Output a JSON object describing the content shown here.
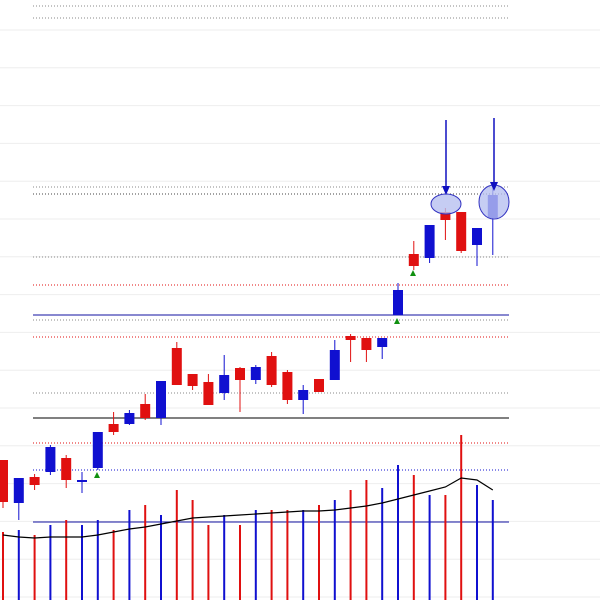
{
  "chart_data": {
    "type": "candlestick",
    "up_color": "#1010d0",
    "down_color": "#e01010",
    "ylim": [
      0,
      600
    ],
    "open": [
      140,
      97,
      123,
      128,
      142,
      118,
      132,
      176,
      176,
      196,
      182,
      252,
      226,
      218,
      207,
      232,
      220,
      244,
      228,
      200,
      221,
      220,
      264,
      262,
      253,
      285,
      346,
      342,
      388,
      388,
      355,
      382
    ],
    "high": [
      140,
      122,
      126,
      155,
      145,
      128,
      168,
      188,
      190,
      206,
      219,
      258,
      226,
      226,
      245,
      233,
      235,
      248,
      230,
      215,
      221,
      260,
      266,
      262,
      262,
      317,
      359,
      375,
      392,
      388,
      372,
      412
    ],
    "low": [
      92,
      80,
      110,
      125,
      112,
      107,
      130,
      165,
      175,
      180,
      175,
      215,
      210,
      195,
      200,
      188,
      216,
      213,
      196,
      186,
      208,
      220,
      238,
      238,
      241,
      285,
      330,
      337,
      360,
      347,
      334,
      345
    ],
    "close": [
      98,
      122,
      115,
      153,
      120,
      120,
      168,
      168,
      187,
      182,
      219,
      215,
      214,
      195,
      225,
      220,
      233,
      215,
      200,
      210,
      208,
      250,
      260,
      250,
      262,
      310,
      334,
      375,
      380,
      349,
      372,
      405
    ],
    "volume": {
      "ylim": [
        0,
        600
      ],
      "values": [
        68,
        70,
        65,
        75,
        80,
        75,
        80,
        70,
        90,
        95,
        85,
        110,
        100,
        75,
        85,
        75,
        90,
        90,
        90,
        90,
        95,
        100,
        110,
        120,
        112,
        135,
        125,
        105,
        105,
        165,
        115,
        100
      ]
    },
    "moving_average": {
      "color": "#000000",
      "values": [
        65,
        63,
        62,
        63,
        63,
        63,
        65,
        68,
        71,
        73,
        76,
        79,
        82,
        83,
        84,
        85,
        86,
        87,
        88,
        89,
        89,
        90,
        92,
        94,
        97,
        101,
        105,
        109,
        113,
        122,
        120,
        110
      ]
    },
    "levels": [
      {
        "value": 594,
        "color": "#888888",
        "style": "dotted"
      },
      {
        "value": 582,
        "color": "#888888",
        "style": "dotted"
      },
      {
        "value": 413,
        "color": "#888888",
        "style": "dotted"
      },
      {
        "value": 406,
        "color": "#444444",
        "style": "dotted"
      },
      {
        "value": 343,
        "color": "#888888",
        "style": "dotted"
      },
      {
        "value": 315,
        "color": "#e01010",
        "style": "dotted"
      },
      {
        "value": 285,
        "color": "#1010a0",
        "style": "solid"
      },
      {
        "value": 280,
        "color": "#888888",
        "style": "dotted"
      },
      {
        "value": 263,
        "color": "#e01010",
        "style": "dotted"
      },
      {
        "value": 207,
        "color": "#888888",
        "style": "dotted"
      },
      {
        "value": 182,
        "color": "#000000",
        "style": "solid"
      },
      {
        "value": 157,
        "color": "#e01010",
        "style": "dotted"
      },
      {
        "value": 130,
        "color": "#1010d0",
        "style": "dotted"
      },
      {
        "value": 78,
        "color": "#1010a0",
        "style": "solid"
      }
    ]
  }
}
